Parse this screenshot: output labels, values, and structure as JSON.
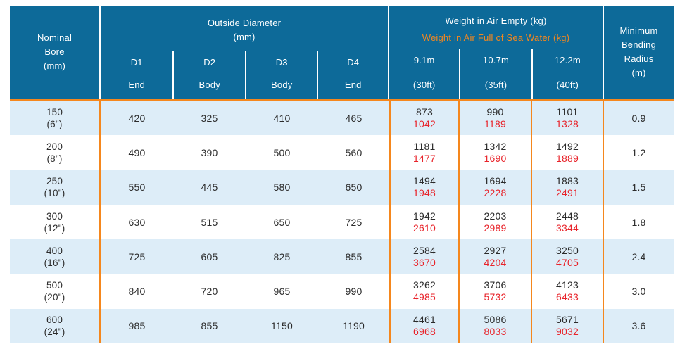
{
  "colors": {
    "header_bg": "#0d6a99",
    "accent_orange": "#f5871d",
    "row_stripe": "#ddedf8",
    "value_red": "#e8232a",
    "text_dark": "#2b2b2b"
  },
  "chart_data": {
    "type": "table",
    "header": {
      "nominal_bore": "Nominal\nBore\n(mm)",
      "outside_diameter": {
        "title": "Outside Diameter\n(mm)",
        "columns": [
          {
            "code": "D1",
            "pos": "End"
          },
          {
            "code": "D2",
            "pos": "Body"
          },
          {
            "code": "D3",
            "pos": "Body"
          },
          {
            "code": "D4",
            "pos": "End"
          }
        ]
      },
      "weight": {
        "title_empty": "Weight in Air Empty (kg)",
        "title_full": "Weight in Air Full of Sea Water (kg)",
        "columns": [
          {
            "length_m": "9.1m",
            "length_ft": "(30ft)"
          },
          {
            "length_m": "10.7m",
            "length_ft": "(35ft)"
          },
          {
            "length_m": "12.2m",
            "length_ft": "(40ft)"
          }
        ]
      },
      "min_bending_radius": "Minimum\nBending\nRadius\n(m)"
    },
    "rows": [
      {
        "bore": "150",
        "bore_in": "(6\")",
        "d1": "420",
        "d2": "325",
        "d3": "410",
        "d4": "465",
        "w1_empty": "873",
        "w1_full": "1042",
        "w2_empty": "990",
        "w2_full": "1189",
        "w3_empty": "1101",
        "w3_full": "1328",
        "mbr": "0.9"
      },
      {
        "bore": "200",
        "bore_in": "(8\")",
        "d1": "490",
        "d2": "390",
        "d3": "500",
        "d4": "560",
        "w1_empty": "1181",
        "w1_full": "1477",
        "w2_empty": "1342",
        "w2_full": "1690",
        "w3_empty": "1492",
        "w3_full": "1889",
        "mbr": "1.2"
      },
      {
        "bore": "250",
        "bore_in": "(10\")",
        "d1": "550",
        "d2": "445",
        "d3": "580",
        "d4": "650",
        "w1_empty": "1494",
        "w1_full": "1948",
        "w2_empty": "1694",
        "w2_full": "2228",
        "w3_empty": "1883",
        "w3_full": "2491",
        "mbr": "1.5"
      },
      {
        "bore": "300",
        "bore_in": "(12\")",
        "d1": "630",
        "d2": "515",
        "d3": "650",
        "d4": "725",
        "w1_empty": "1942",
        "w1_full": "2610",
        "w2_empty": "2203",
        "w2_full": "2989",
        "w3_empty": "2448",
        "w3_full": "3344",
        "mbr": "1.8"
      },
      {
        "bore": "400",
        "bore_in": "(16\")",
        "d1": "725",
        "d2": "605",
        "d3": "825",
        "d4": "855",
        "w1_empty": "2584",
        "w1_full": "3670",
        "w2_empty": "2927",
        "w2_full": "4204",
        "w3_empty": "3250",
        "w3_full": "4705",
        "mbr": "2.4"
      },
      {
        "bore": "500",
        "bore_in": "(20\")",
        "d1": "840",
        "d2": "720",
        "d3": "965",
        "d4": "990",
        "w1_empty": "3262",
        "w1_full": "4985",
        "w2_empty": "3706",
        "w2_full": "5732",
        "w3_empty": "4123",
        "w3_full": "6433",
        "mbr": "3.0"
      },
      {
        "bore": "600",
        "bore_in": "(24\")",
        "d1": "985",
        "d2": "855",
        "d3": "1150",
        "d4": "1190",
        "w1_empty": "4461",
        "w1_full": "6968",
        "w2_empty": "5086",
        "w2_full": "8033",
        "w3_empty": "5671",
        "w3_full": "9032",
        "mbr": "3.6"
      }
    ]
  }
}
